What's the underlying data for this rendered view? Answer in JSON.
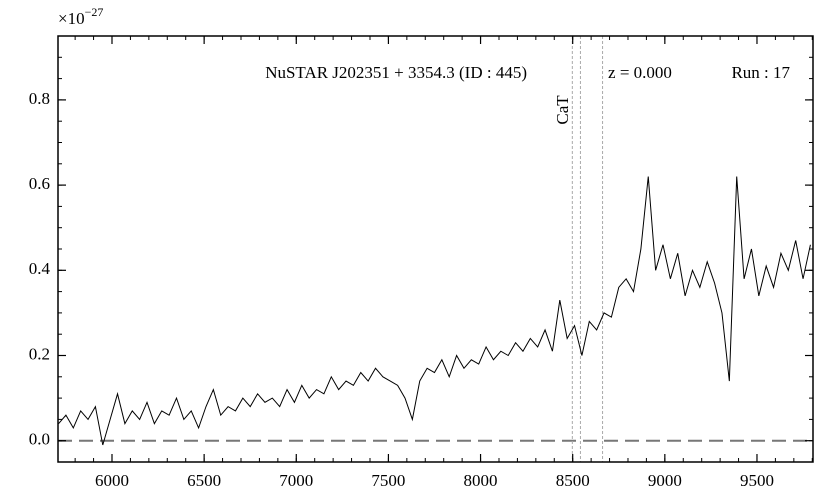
{
  "chart_data": {
    "type": "line",
    "title": "NuSTAR J202351 + 3354.3 (ID : 445)",
    "redshift": "z = 0.000",
    "run": "Run : 17",
    "multiplier": "×10",
    "multiplier_exp": "−27",
    "x": [
      5710,
      5750,
      5790,
      5830,
      5870,
      5910,
      5950,
      5990,
      6030,
      6070,
      6110,
      6150,
      6190,
      6230,
      6270,
      6310,
      6350,
      6390,
      6430,
      6470,
      6510,
      6550,
      6590,
      6630,
      6670,
      6710,
      6750,
      6790,
      6830,
      6870,
      6910,
      6950,
      6990,
      7030,
      7070,
      7110,
      7150,
      7190,
      7230,
      7270,
      7310,
      7350,
      7390,
      7430,
      7470,
      7510,
      7550,
      7590,
      7630,
      7670,
      7710,
      7750,
      7790,
      7830,
      7870,
      7910,
      7950,
      7990,
      8030,
      8070,
      8110,
      8150,
      8190,
      8230,
      8270,
      8310,
      8350,
      8390,
      8430,
      8470,
      8510,
      8550,
      8590,
      8630,
      8670,
      8710,
      8750,
      8790,
      8830,
      8870,
      8910,
      8950,
      8990,
      9030,
      9070,
      9110,
      9150,
      9190,
      9230,
      9270,
      9310,
      9350,
      9390,
      9430,
      9470,
      9510,
      9550,
      9590,
      9630,
      9670,
      9710,
      9750,
      9790
    ],
    "series": [
      {
        "color": "#000000",
        "values": [
          0.04,
          0.06,
          0.03,
          0.07,
          0.05,
          0.08,
          -0.01,
          0.05,
          0.11,
          0.04,
          0.07,
          0.05,
          0.09,
          0.04,
          0.07,
          0.06,
          0.1,
          0.05,
          0.07,
          0.03,
          0.08,
          0.12,
          0.06,
          0.08,
          0.07,
          0.1,
          0.08,
          0.11,
          0.09,
          0.1,
          0.08,
          0.12,
          0.09,
          0.13,
          0.1,
          0.12,
          0.11,
          0.15,
          0.12,
          0.14,
          0.13,
          0.16,
          0.14,
          0.17,
          0.15,
          0.14,
          0.13,
          0.1,
          0.05,
          0.14,
          0.17,
          0.16,
          0.19,
          0.15,
          0.2,
          0.17,
          0.19,
          0.18,
          0.22,
          0.19,
          0.21,
          0.2,
          0.23,
          0.21,
          0.24,
          0.22,
          0.26,
          0.21,
          0.33,
          0.24,
          0.27,
          0.2,
          0.28,
          0.26,
          0.3,
          0.29,
          0.36,
          0.38,
          0.35,
          0.45,
          0.62,
          0.4,
          0.46,
          0.38,
          0.44,
          0.34,
          0.4,
          0.36,
          0.42,
          0.37,
          0.3,
          0.14,
          0.62,
          0.38,
          0.45,
          0.34,
          0.41,
          0.36,
          0.44,
          0.4,
          0.47,
          0.38,
          0.46
        ]
      }
    ],
    "xlim": [
      5707,
      9804
    ],
    "ylim": [
      -0.05,
      0.95
    ],
    "xticks": [
      6000,
      6500,
      7000,
      7500,
      8000,
      8500,
      9000,
      9500
    ],
    "yticks": [
      {
        "value": 0,
        "label": "0.0"
      },
      0.2,
      0.4,
      0.6,
      0.8
    ],
    "hline": 0,
    "line_label": "CaT",
    "lines": [
      8498,
      8542,
      8662
    ]
  }
}
